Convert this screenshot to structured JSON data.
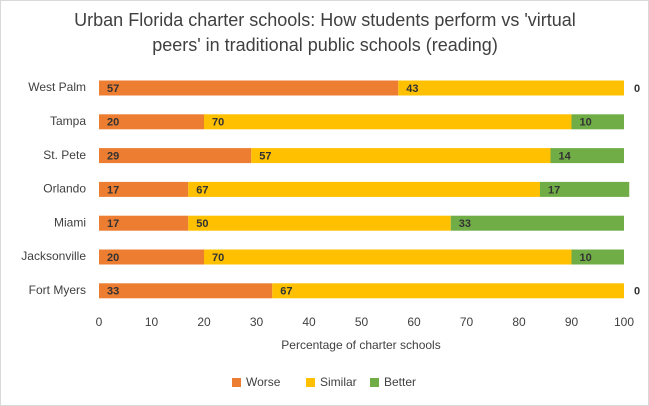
{
  "chart_data": {
    "type": "stacked_bar_horizontal",
    "title": "Urban Florida charter schools: How students perform vs 'virtual peers' in traditional public schools (reading)",
    "x_label": "Percentage of charter schools",
    "categories": [
      "West Palm",
      "Tampa",
      "St. Pete",
      "Orlando",
      "Miami",
      "Jacksonville",
      "Fort Myers"
    ],
    "series": [
      {
        "name": "Worse",
        "color": "#ED7D31",
        "values": [
          57,
          20,
          29,
          17,
          17,
          20,
          33
        ]
      },
      {
        "name": "Similar",
        "color": "#FFC000",
        "values": [
          43,
          70,
          57,
          67,
          50,
          70,
          67
        ]
      },
      {
        "name": "Better",
        "color": "#70AD47",
        "values": [
          0,
          10,
          14,
          17,
          33,
          10,
          0
        ]
      }
    ],
    "xlim": [
      0,
      100
    ],
    "xticks": [
      0,
      10,
      20,
      30,
      40,
      50,
      60,
      70,
      80,
      90,
      100
    ],
    "legend": "bottom"
  }
}
